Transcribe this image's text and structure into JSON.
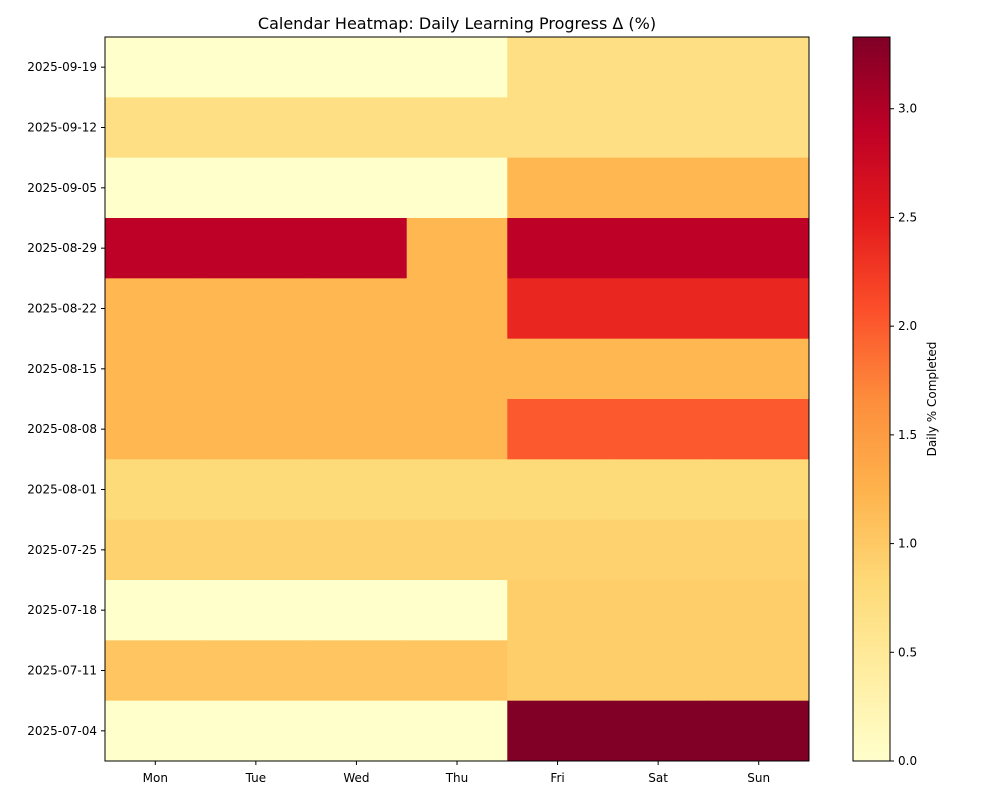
{
  "chart_data": {
    "type": "heatmap",
    "title": "Calendar Heatmap: Daily Learning Progress Δ (%)",
    "xlabel": "",
    "ylabel": "",
    "columns": [
      "Mon",
      "Tue",
      "Wed",
      "Thu",
      "Fri",
      "Sat",
      "Sun"
    ],
    "rows": [
      "2025-09-19",
      "2025-09-12",
      "2025-09-05",
      "2025-08-29",
      "2025-08-22",
      "2025-08-15",
      "2025-08-08",
      "2025-08-01",
      "2025-07-25",
      "2025-07-18",
      "2025-07-11",
      "2025-07-04"
    ],
    "values": [
      [
        0,
        0,
        0,
        0,
        0.7,
        0.7,
        0.7
      ],
      [
        0.7,
        0.7,
        0.7,
        0.7,
        0.7,
        0.7,
        0.7
      ],
      [
        0,
        0,
        0,
        0,
        1.2,
        1.2,
        1.2
      ],
      [
        2.9,
        2.9,
        2.9,
        1.2,
        2.9,
        2.9,
        2.9
      ],
      [
        1.2,
        1.2,
        1.2,
        1.2,
        2.4,
        2.4,
        2.4
      ],
      [
        1.2,
        1.2,
        1.2,
        1.2,
        1.2,
        1.2,
        1.2
      ],
      [
        1.2,
        1.2,
        1.2,
        1.2,
        2.0,
        2.0,
        2.0
      ],
      [
        0.8,
        0.8,
        0.8,
        0.8,
        0.8,
        0.8,
        0.8
      ],
      [
        0.9,
        0.9,
        0.9,
        0.9,
        0.9,
        0.9,
        0.9
      ],
      [
        0,
        0,
        0,
        0,
        0.95,
        0.95,
        0.95
      ],
      [
        1.05,
        1.05,
        1.05,
        1.05,
        0.95,
        0.95,
        0.95
      ],
      [
        0,
        0,
        0,
        0,
        3.33,
        3.33,
        3.33
      ]
    ],
    "colormap": "YlOrRd",
    "colorbar": {
      "label": "Daily % Completed",
      "range": [
        0,
        3.33
      ],
      "ticks": [
        0.0,
        0.5,
        1.0,
        1.5,
        2.0,
        2.5,
        3.0
      ],
      "tick_labels": [
        "0.0",
        "0.5",
        "1.0",
        "1.5",
        "2.0",
        "2.5",
        "3.0"
      ]
    },
    "grid": false
  }
}
